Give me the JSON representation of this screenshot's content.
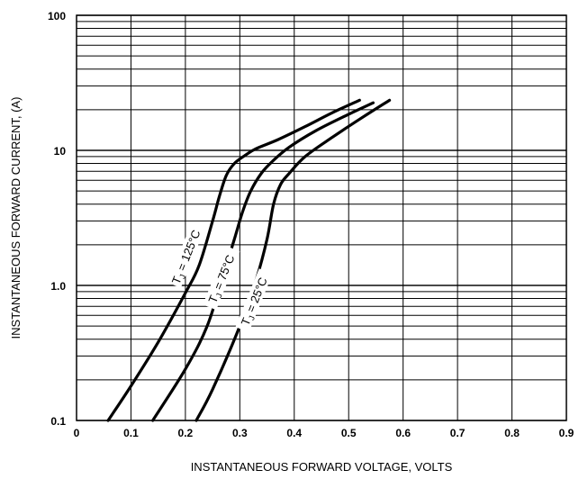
{
  "chart_data": {
    "type": "line",
    "title": "",
    "xlabel": "INSTANTANEOUS FORWARD VOLTAGE, VOLTS",
    "ylabel": "INSTANTANEOUS  FORWARD CURRENT, (A)",
    "xlim": [
      0,
      0.9
    ],
    "ylim": [
      0.1,
      100
    ],
    "yscale": "log",
    "grid": true,
    "x_ticks": [
      "0",
      "0.1",
      "0.2",
      "0.3",
      "0.4",
      "0.5",
      "0.6",
      "0.7",
      "0.8",
      "0.9"
    ],
    "y_ticks": [
      {
        "value": 0.1,
        "label": "0.1"
      },
      {
        "value": 1,
        "label": "1.0"
      },
      {
        "value": 10,
        "label": "10"
      },
      {
        "value": 100,
        "label": "100"
      }
    ],
    "series": [
      {
        "label_main": "T",
        "label_sub": "J",
        "label_rest": " = 125°C",
        "points": [
          [
            0.058,
            0.1
          ],
          [
            0.1,
            0.18
          ],
          [
            0.15,
            0.38
          ],
          [
            0.2,
            0.88
          ],
          [
            0.225,
            1.4
          ],
          [
            0.25,
            3.0
          ],
          [
            0.262,
            4.5
          ],
          [
            0.275,
            6.5
          ],
          [
            0.29,
            8.0
          ],
          [
            0.31,
            9.2
          ],
          [
            0.33,
            10.3
          ],
          [
            0.37,
            12.0
          ],
          [
            0.42,
            15.0
          ],
          [
            0.47,
            19.0
          ],
          [
            0.52,
            23.5
          ]
        ]
      },
      {
        "label_main": "T",
        "label_sub": "J",
        "label_rest": " = 75°C",
        "points": [
          [
            0.14,
            0.1
          ],
          [
            0.2,
            0.24
          ],
          [
            0.24,
            0.5
          ],
          [
            0.27,
            1.2
          ],
          [
            0.29,
            2.2
          ],
          [
            0.305,
            3.5
          ],
          [
            0.32,
            5.0
          ],
          [
            0.34,
            6.8
          ],
          [
            0.36,
            8.3
          ],
          [
            0.39,
            10.5
          ],
          [
            0.44,
            14.0
          ],
          [
            0.5,
            18.5
          ],
          [
            0.545,
            22.5
          ]
        ]
      },
      {
        "label_main": "T",
        "label_sub": "J",
        "label_rest": " = 25°C",
        "points": [
          [
            0.22,
            0.1
          ],
          [
            0.25,
            0.17
          ],
          [
            0.3,
            0.5
          ],
          [
            0.33,
            1.1
          ],
          [
            0.35,
            2.2
          ],
          [
            0.362,
            4.0
          ],
          [
            0.375,
            5.6
          ],
          [
            0.39,
            6.7
          ],
          [
            0.42,
            9.0
          ],
          [
            0.47,
            12.5
          ],
          [
            0.52,
            17.0
          ],
          [
            0.575,
            23.5
          ]
        ]
      }
    ]
  }
}
